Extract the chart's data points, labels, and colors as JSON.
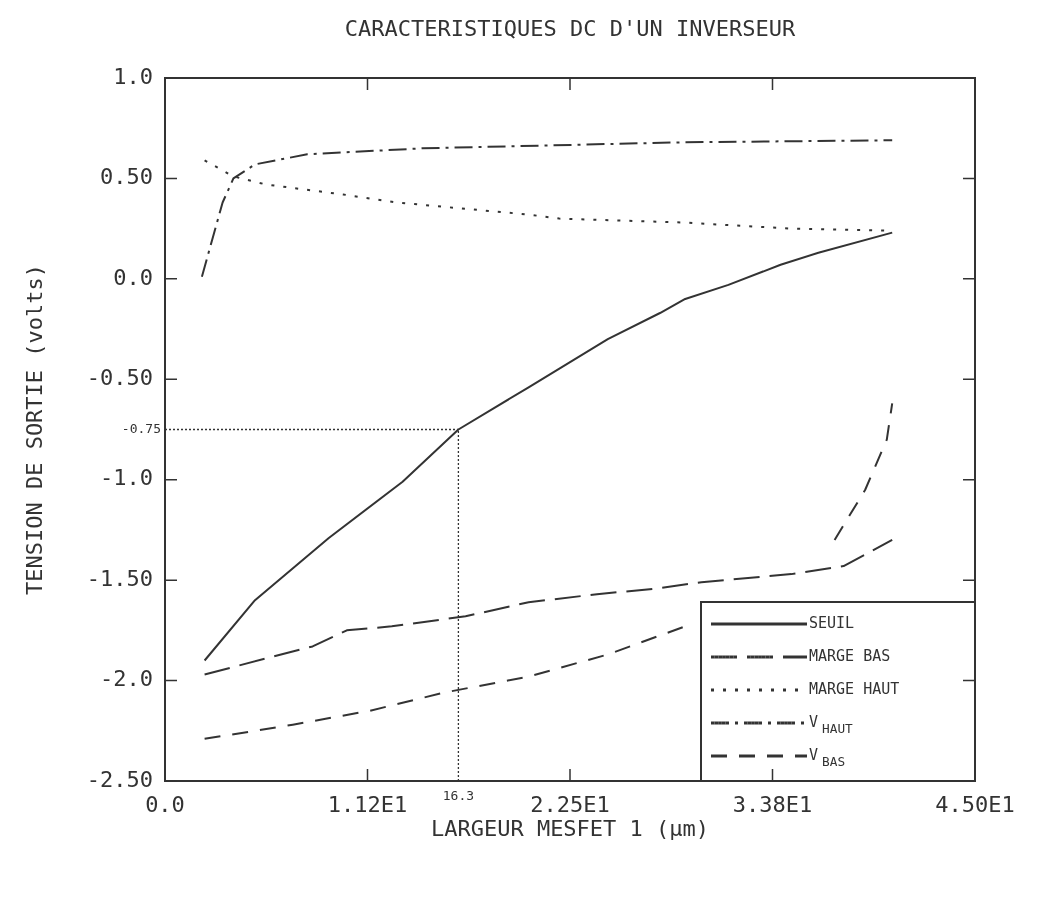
{
  "chart_data": {
    "type": "line",
    "title": "CARACTERISTIQUES DC D'UN INVERSEUR",
    "xlabel": "LARGEUR MESFET 1 (µm)",
    "ylabel": "TENSION DE SORTIE (volts)",
    "xlim": [
      0,
      45
    ],
    "ylim": [
      -2.5,
      1.0
    ],
    "xticks": [
      {
        "value": 0,
        "label": "0.0"
      },
      {
        "value": 11.25,
        "label": "1.12E1"
      },
      {
        "value": 22.5,
        "label": "2.25E1"
      },
      {
        "value": 33.75,
        "label": "3.38E1"
      },
      {
        "value": 45,
        "label": "4.50E1"
      }
    ],
    "yticks": [
      {
        "value": 1,
        "label": "1.0"
      },
      {
        "value": 0.5,
        "label": "0.50"
      },
      {
        "value": 0,
        "label": "0.0"
      },
      {
        "value": -0.5,
        "label": "-0.50"
      },
      {
        "value": -1,
        "label": "-1.0"
      },
      {
        "value": -1.5,
        "label": "-1.50"
      },
      {
        "value": -2,
        "label": "-2.0"
      },
      {
        "value": -2.5,
        "label": "-2.50"
      }
    ],
    "grid": false,
    "legend": "bottom right",
    "marker": "none",
    "ref_lines": [
      {
        "axis": "x",
        "value": 16.3,
        "label": "16.3",
        "line_style": "dotted",
        "color": "#333333"
      },
      {
        "axis": "y",
        "value": -0.75,
        "label": "-0.75",
        "line_style": "dotted",
        "color": "#333333"
      }
    ],
    "series": [
      {
        "name": "SEUIL",
        "color": "#333333",
        "line_style": "solid",
        "x": [
          2.2,
          5.0,
          9.1,
          13.2,
          16.3,
          20.2,
          24.6,
          27.5,
          28.9,
          31.3,
          34.2,
          36.3,
          40.4
        ],
        "values": [
          -1.9,
          -1.6,
          -1.29,
          -1.01,
          -0.75,
          -0.54,
          -0.3,
          -0.17,
          -0.1,
          -0.03,
          0.07,
          0.13,
          0.23
        ]
      },
      {
        "name": "MARGE BAS",
        "color": "#333333",
        "line_style": "longdash",
        "x": [
          2.2,
          5.6,
          8.2,
          10.1,
          12.6,
          16.7,
          20.2,
          24.0,
          27.5,
          29.8,
          34.8,
          37.7,
          40.4
        ],
        "values": [
          -1.97,
          -1.89,
          -1.83,
          -1.75,
          -1.73,
          -1.68,
          -1.61,
          -1.57,
          -1.54,
          -1.51,
          -1.47,
          -1.43,
          -1.3
        ]
      },
      {
        "name": "MARGE HAUT",
        "color": "#333333",
        "line_style": "dotted",
        "x": [
          2.2,
          3.8,
          5.6,
          9.9,
          12.9,
          20.2,
          21.9,
          28.9,
          34.8,
          40.4
        ],
        "values": [
          0.59,
          0.51,
          0.47,
          0.42,
          0.38,
          0.32,
          0.3,
          0.28,
          0.25,
          0.24
        ]
      },
      {
        "name": "V$_{HAUT}$",
        "color": "#333333",
        "line_style": "dashdot",
        "x": [
          2.05,
          2.7,
          3.2,
          3.8,
          5.0,
          7.9,
          14.3,
          28.9,
          40.4
        ],
        "values": [
          0.01,
          0.22,
          0.38,
          0.5,
          0.57,
          0.62,
          0.65,
          0.68,
          0.69
        ]
      },
      {
        "name": "V$_{BAS}$",
        "color": "#333333",
        "line_style": "dashed",
        "x": [
          2.2,
          7.1,
          11.4,
          15.5,
          20.2,
          24.6,
          28.9,
          33.3,
          37.2,
          38.9,
          40.1,
          40.4
        ],
        "values": [
          -2.29,
          -2.22,
          -2.15,
          -2.06,
          -1.98,
          -1.87,
          -1.73,
          null,
          -1.3,
          -1.05,
          -0.8,
          -0.62
        ]
      }
    ]
  }
}
